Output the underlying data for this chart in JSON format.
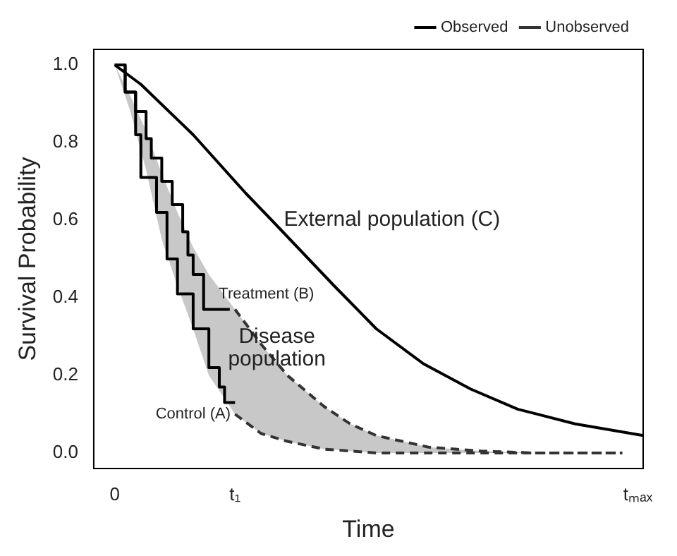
{
  "chart_data": {
    "type": "line",
    "xlabel": "Time",
    "ylabel": "Survival Probability",
    "categories": [
      null,
      null,
      null,
      null,
      "0",
      null,
      null,
      null,
      null,
      null,
      null,
      null,
      null,
      null,
      null,
      null,
      null,
      null,
      null,
      null,
      null,
      null,
      null,
      null,
      null,
      null,
      null,
      "t₁",
      null,
      null,
      null,
      null,
      null,
      null,
      null,
      null,
      null,
      null,
      null,
      null,
      null,
      null,
      null,
      null,
      null,
      null,
      null,
      null,
      null,
      null,
      null,
      null,
      null,
      null,
      null,
      null,
      null,
      null,
      null,
      null,
      null,
      null,
      null,
      null,
      null,
      null,
      null,
      null,
      null,
      null,
      null,
      null,
      null,
      null,
      null,
      null,
      null,
      null,
      null,
      null,
      null,
      null,
      null,
      null,
      null,
      null,
      null,
      null,
      null,
      null,
      null,
      null,
      null,
      null,
      null,
      null,
      null,
      null,
      null,
      null,
      null,
      null,
      null,
      null,
      "tₘₐₓ",
      null
    ],
    "ylim": [
      -0.04,
      1.04
    ],
    "yticks": [
      {
        "value": 0,
        "label": "0.0"
      },
      0.2,
      0.4,
      0.6,
      0.8,
      {
        "value": 1,
        "label": "1.0"
      }
    ],
    "grid": false,
    "legend": "top right",
    "marker": "none",
    "series": [
      {
        "name": "Observed",
        "line_style": "solid",
        "color": "#000000",
        "values": [
          null,
          null,
          null,
          null,
          1,
          null,
          null,
          null,
          null,
          0.95,
          null,
          null,
          null,
          null,
          null,
          null,
          null,
          null,
          null,
          0.82,
          null,
          null,
          null,
          null,
          null,
          null,
          null,
          null,
          null,
          0.67,
          null,
          null,
          null,
          null,
          0.6,
          null,
          null,
          null,
          null,
          null,
          null,
          null,
          null,
          null,
          null,
          null,
          0.43,
          null,
          null,
          null,
          null,
          null,
          null,
          null,
          0.32,
          null,
          null,
          null,
          null,
          null,
          null,
          null,
          null,
          0.23,
          null,
          null,
          null,
          null,
          null,
          null,
          null,
          null,
          0.165,
          null,
          null,
          null,
          null,
          null,
          null,
          null,
          null,
          0.113,
          null,
          null,
          null,
          null,
          null,
          null,
          null,
          null,
          null,
          null,
          0.075,
          null,
          null,
          null,
          null,
          null,
          null,
          null,
          null,
          null,
          null,
          null,
          null,
          0.045
        ]
      },
      {
        "name": "Unobserved",
        "line_style": "dashed",
        "color": "#333333",
        "values": [
          null,
          null,
          null,
          null,
          null,
          null,
          null,
          null,
          null,
          null,
          null,
          null,
          null,
          null,
          null,
          null,
          null,
          null,
          null,
          null,
          null,
          null,
          null,
          null,
          null,
          null,
          null,
          0.37,
          null,
          null,
          null,
          null,
          0.28,
          null,
          null,
          null,
          null,
          0.2,
          null,
          null,
          null,
          null,
          null,
          null,
          0.12,
          null,
          null,
          null,
          null,
          0.075,
          null,
          null,
          null,
          null,
          0.045,
          null,
          null,
          null,
          null,
          null,
          null,
          null,
          null,
          null,
          0.015,
          null,
          null,
          null,
          null,
          null,
          null,
          null,
          null,
          null,
          0.005,
          null,
          null,
          null,
          null,
          null,
          null,
          null,
          null,
          null,
          0,
          null,
          null,
          null,
          null,
          null,
          null,
          null,
          null,
          null,
          null,
          null,
          null,
          null,
          null,
          null,
          null,
          0,
          null,
          null,
          null,
          null
        ],
        "upper": [
          null,
          null,
          null,
          null,
          1,
          null,
          null,
          0.92,
          null,
          null,
          0.83,
          null,
          null,
          0.72,
          null,
          null,
          0.62,
          null,
          null,
          0.53,
          null,
          null,
          0.46,
          null,
          null,
          null,
          null,
          0.37,
          null,
          null,
          null,
          null,
          0.28,
          null,
          null,
          null,
          null,
          0.2,
          null,
          null,
          null,
          null,
          null,
          null,
          0.12,
          null,
          null,
          null,
          null,
          0.075,
          null,
          null,
          null,
          null,
          0.045,
          null,
          null,
          null,
          null,
          null,
          null,
          null,
          null,
          null,
          0.015,
          null,
          null,
          null,
          null,
          null,
          null,
          null,
          null,
          null,
          0.005,
          null,
          null,
          null,
          null,
          null,
          null,
          null,
          null,
          null,
          0,
          null,
          null,
          null,
          null,
          null,
          null,
          null,
          null,
          null,
          null,
          null,
          null,
          null,
          null,
          null,
          null,
          0,
          null,
          null,
          null,
          null
        ],
        "lower": [
          null,
          null,
          null,
          null,
          1,
          null,
          null,
          0.88,
          null,
          null,
          0.73,
          null,
          null,
          0.55,
          null,
          null,
          0.43,
          null,
          null,
          0.32,
          null,
          null,
          0.2,
          null,
          null,
          null,
          null,
          0.1,
          null,
          null,
          null,
          null,
          0.05,
          null,
          null,
          null,
          null,
          0.03,
          null,
          null,
          null,
          null,
          null,
          null,
          0.01,
          null,
          null,
          null,
          null,
          0.005,
          null,
          null,
          null,
          null,
          0,
          null,
          null,
          null,
          null,
          null,
          null,
          null,
          null,
          null,
          0,
          null,
          null,
          null,
          null,
          null,
          null,
          null,
          null,
          null,
          0,
          null,
          null,
          null,
          null,
          null,
          null,
          null,
          null,
          null,
          0,
          null,
          null,
          null,
          null,
          null,
          null,
          null,
          null,
          null,
          null,
          null,
          null,
          null,
          null,
          null,
          null,
          0,
          null,
          null,
          null,
          null
        ]
      },
      {
        "line_style": "dashed",
        "color": "#333333",
        "values": [
          null,
          null,
          null,
          null,
          null,
          null,
          null,
          null,
          null,
          null,
          null,
          null,
          null,
          null,
          null,
          null,
          null,
          null,
          null,
          null,
          null,
          null,
          null,
          null,
          null,
          null,
          null,
          0.1,
          null,
          null,
          null,
          null,
          0.05,
          null,
          null,
          null,
          null,
          0.03,
          null,
          null,
          null,
          null,
          null,
          null,
          0.01,
          null,
          null,
          null,
          null,
          0.005,
          null,
          null,
          null,
          null,
          0,
          null,
          null,
          null,
          null,
          null,
          null,
          null,
          null,
          null,
          0,
          null,
          null,
          null,
          null,
          null,
          null,
          null,
          null,
          null,
          0,
          null,
          null,
          null,
          null,
          null,
          null,
          null,
          null,
          null,
          0,
          null,
          null,
          null,
          null,
          null,
          null,
          null,
          null,
          null,
          null,
          null,
          null,
          null,
          null,
          null,
          null,
          0,
          null,
          null,
          null,
          null
        ]
      },
      {
        "type": "step",
        "line_style": "solid",
        "color": "#000000",
        "values": [
          null,
          null,
          null,
          null,
          1,
          1,
          0.93,
          0.93,
          0.88,
          0.88,
          0.81,
          0.76,
          0.76,
          0.7,
          0.7,
          0.64,
          0.64,
          0.57,
          0.51,
          0.46,
          0.46,
          0.37,
          0.37,
          0.37,
          0.37,
          0.37,
          0.37,
          null,
          null,
          null,
          null,
          null,
          null,
          null,
          null,
          null,
          null,
          null,
          null,
          null,
          null,
          null,
          null,
          null,
          null,
          null,
          null,
          null,
          null,
          null,
          null,
          null,
          null,
          null,
          null,
          null,
          null,
          null,
          null,
          null,
          null,
          null,
          null,
          null,
          null,
          null,
          null,
          null,
          null,
          null,
          null,
          null,
          null,
          null,
          null,
          null,
          null,
          null,
          null,
          null,
          null,
          null,
          null,
          null,
          null,
          null,
          null,
          null,
          null,
          null,
          null,
          null,
          null,
          null,
          null,
          null,
          null,
          null,
          null,
          null,
          null,
          null,
          null,
          null,
          null,
          null
        ]
      },
      {
        "type": "step",
        "line_style": "solid",
        "color": "#000000",
        "values": [
          null,
          null,
          null,
          null,
          1,
          1,
          0.93,
          0.93,
          0.82,
          0.71,
          0.71,
          0.71,
          0.62,
          0.62,
          0.5,
          0.5,
          0.41,
          0.41,
          0.41,
          0.32,
          0.32,
          0.32,
          0.22,
          0.22,
          0.17,
          0.13,
          0.13,
          0.13,
          null,
          null,
          null,
          null,
          null,
          null,
          null,
          null,
          null,
          null,
          null,
          null,
          null,
          null,
          null,
          null,
          null,
          null,
          null,
          null,
          null,
          null,
          null,
          null,
          null,
          null,
          null,
          null,
          null,
          null,
          null,
          null,
          null,
          null,
          null,
          null,
          null,
          null,
          null,
          null,
          null,
          null,
          null,
          null,
          null,
          null,
          null,
          null,
          null,
          null,
          null,
          null,
          null,
          null,
          null,
          null,
          null,
          null,
          null,
          null,
          null,
          null,
          null,
          null,
          null,
          null,
          null,
          null,
          null,
          null,
          null,
          null,
          null,
          null,
          null,
          null,
          null,
          null
        ]
      }
    ],
    "annotations": [
      "External population (C)",
      "Treatment (B)",
      "Disease population",
      "Control (A)"
    ]
  }
}
